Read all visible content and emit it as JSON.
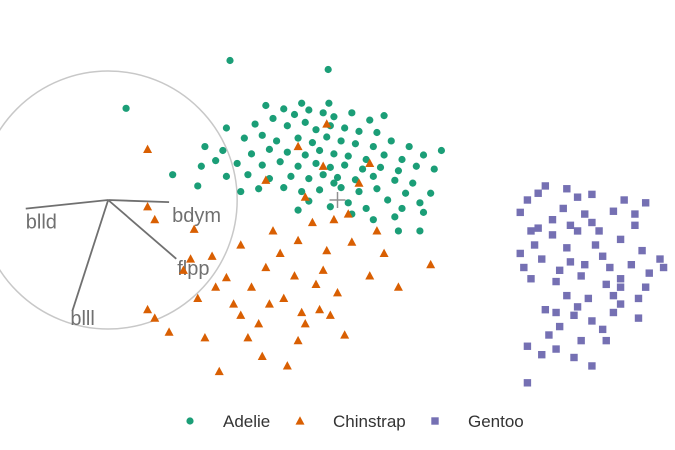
{
  "chart_data": {
    "type": "scatter",
    "title": "",
    "xlabel": "",
    "ylabel": "",
    "grid": false,
    "legend_position": "bottom",
    "xlim": [
      -4.5,
      4.5
    ],
    "ylim": [
      -3.2,
      3.2
    ],
    "center_marker": [
      0,
      0
    ],
    "axes_guide": {
      "circle_radius": 1.8,
      "axes": [
        {
          "name": "blld",
          "end": [
            -1.15,
            -0.12
          ]
        },
        {
          "name": "bdym",
          "end": [
            0.85,
            -0.03
          ]
        },
        {
          "name": "flpp",
          "end": [
            0.95,
            -0.82
          ]
        },
        {
          "name": "blll",
          "end": [
            -0.5,
            -1.55
          ]
        }
      ]
    },
    "series": [
      {
        "name": "Adelie",
        "color": "#1b9e77",
        "marker": "circle",
        "points": [
          [
            -1.5,
            2.48
          ],
          [
            -0.13,
            2.32
          ],
          [
            -0.12,
            1.72
          ],
          [
            -2.95,
            1.63
          ],
          [
            -1.0,
            1.68
          ],
          [
            -0.5,
            1.72
          ],
          [
            -0.75,
            1.62
          ],
          [
            -0.6,
            1.52
          ],
          [
            -0.4,
            1.6
          ],
          [
            -0.2,
            1.55
          ],
          [
            -0.05,
            1.48
          ],
          [
            0.2,
            1.55
          ],
          [
            0.45,
            1.42
          ],
          [
            0.65,
            1.5
          ],
          [
            -0.9,
            1.45
          ],
          [
            -1.15,
            1.35
          ],
          [
            -0.7,
            1.32
          ],
          [
            -0.45,
            1.38
          ],
          [
            -0.3,
            1.25
          ],
          [
            -0.1,
            1.32
          ],
          [
            0.1,
            1.28
          ],
          [
            0.3,
            1.22
          ],
          [
            0.55,
            1.2
          ],
          [
            -1.55,
            1.28
          ],
          [
            -1.3,
            1.1
          ],
          [
            -1.05,
            1.15
          ],
          [
            -0.85,
            1.05
          ],
          [
            -0.55,
            1.1
          ],
          [
            -0.35,
            1.02
          ],
          [
            -0.15,
            1.12
          ],
          [
            0.05,
            1.05
          ],
          [
            0.25,
            1.0
          ],
          [
            0.5,
            0.95
          ],
          [
            0.75,
            1.05
          ],
          [
            1.0,
            0.95
          ],
          [
            -1.85,
            0.95
          ],
          [
            -1.6,
            0.88
          ],
          [
            -1.2,
            0.82
          ],
          [
            -0.95,
            0.9
          ],
          [
            -0.7,
            0.85
          ],
          [
            -0.45,
            0.8
          ],
          [
            -0.25,
            0.88
          ],
          [
            -0.05,
            0.82
          ],
          [
            0.15,
            0.78
          ],
          [
            0.4,
            0.72
          ],
          [
            0.65,
            0.8
          ],
          [
            0.9,
            0.72
          ],
          [
            1.45,
            0.88
          ],
          [
            -1.7,
            0.7
          ],
          [
            -1.4,
            0.65
          ],
          [
            -1.05,
            0.62
          ],
          [
            -0.8,
            0.68
          ],
          [
            -0.55,
            0.6
          ],
          [
            -0.3,
            0.65
          ],
          [
            -0.1,
            0.58
          ],
          [
            0.1,
            0.62
          ],
          [
            0.35,
            0.55
          ],
          [
            0.6,
            0.58
          ],
          [
            0.85,
            0.52
          ],
          [
            1.1,
            0.6
          ],
          [
            -1.55,
            0.42
          ],
          [
            -1.25,
            0.45
          ],
          [
            -0.95,
            0.38
          ],
          [
            -0.65,
            0.42
          ],
          [
            -0.4,
            0.38
          ],
          [
            -0.2,
            0.45
          ],
          [
            0.0,
            0.4
          ],
          [
            0.25,
            0.36
          ],
          [
            0.5,
            0.42
          ],
          [
            0.8,
            0.35
          ],
          [
            1.05,
            0.3
          ],
          [
            -1.95,
            0.25
          ],
          [
            -1.1,
            0.2
          ],
          [
            -0.75,
            0.22
          ],
          [
            -0.5,
            0.15
          ],
          [
            -0.25,
            0.18
          ],
          [
            0.05,
            0.22
          ],
          [
            0.3,
            0.15
          ],
          [
            0.55,
            0.2
          ],
          [
            0.95,
            0.12
          ],
          [
            -0.4,
            -0.02
          ],
          [
            0.15,
            -0.05
          ],
          [
            0.7,
            0.0
          ],
          [
            1.15,
            -0.05
          ],
          [
            1.3,
            0.12
          ],
          [
            0.9,
            -0.15
          ],
          [
            0.2,
            -0.25
          ],
          [
            -0.55,
            -0.18
          ],
          [
            -0.05,
            0.3
          ],
          [
            -1.35,
            0.15
          ],
          [
            0.4,
            -0.15
          ],
          [
            0.8,
            -0.3
          ],
          [
            1.2,
            -0.22
          ],
          [
            0.5,
            -0.35
          ],
          [
            -0.1,
            -0.12
          ],
          [
            1.35,
            0.55
          ],
          [
            1.2,
            0.8
          ],
          [
            -2.3,
            0.45
          ],
          [
            -1.9,
            0.6
          ],
          [
            1.15,
            -0.55
          ],
          [
            0.85,
            -0.55
          ]
        ]
      },
      {
        "name": "Chinstrap",
        "color": "#d95f02",
        "marker": "triangle",
        "points": [
          [
            -2.65,
            -0.12
          ],
          [
            -2.55,
            -0.35
          ],
          [
            -2.0,
            -0.52
          ],
          [
            -1.35,
            -0.8
          ],
          [
            -0.9,
            -0.55
          ],
          [
            -0.55,
            -0.72
          ],
          [
            -0.35,
            -0.4
          ],
          [
            -0.8,
            -0.95
          ],
          [
            -2.05,
            -1.05
          ],
          [
            -0.3,
            -1.5
          ],
          [
            -1.7,
            -1.55
          ],
          [
            -2.65,
            -1.95
          ],
          [
            -1.45,
            -1.85
          ],
          [
            -1.75,
            -1.0
          ],
          [
            -1.55,
            -1.38
          ],
          [
            -1.2,
            -1.55
          ],
          [
            -1.0,
            -1.2
          ],
          [
            -0.75,
            -1.75
          ],
          [
            -0.6,
            -1.35
          ],
          [
            -0.95,
            -1.85
          ],
          [
            -0.5,
            -2.0
          ],
          [
            -1.1,
            -2.2
          ],
          [
            -1.85,
            -2.45
          ],
          [
            -2.35,
            -2.35
          ],
          [
            -1.25,
            -2.45
          ],
          [
            -1.05,
            -2.78
          ],
          [
            -0.55,
            -2.5
          ],
          [
            -0.45,
            -2.2
          ],
          [
            -0.1,
            -2.05
          ],
          [
            0.1,
            -2.4
          ],
          [
            -1.65,
            -3.05
          ],
          [
            -0.7,
            -2.95
          ],
          [
            -2.15,
            -1.25
          ],
          [
            -2.55,
            -2.1
          ],
          [
            -1.95,
            -1.75
          ],
          [
            -1.35,
            -2.05
          ],
          [
            -0.2,
            -1.25
          ],
          [
            0.0,
            -1.65
          ],
          [
            0.45,
            -1.35
          ],
          [
            0.85,
            -1.55
          ],
          [
            1.3,
            -1.15
          ],
          [
            0.65,
            -0.95
          ],
          [
            0.2,
            -0.75
          ],
          [
            -0.15,
            -0.9
          ],
          [
            0.55,
            -0.55
          ],
          [
            0.15,
            -0.25
          ],
          [
            -0.45,
            0.05
          ],
          [
            -0.2,
            0.6
          ],
          [
            -0.55,
            0.95
          ],
          [
            -0.15,
            1.35
          ],
          [
            0.45,
            0.65
          ],
          [
            -1.0,
            0.35
          ],
          [
            -0.05,
            -0.35
          ],
          [
            0.3,
            0.3
          ],
          [
            -2.65,
            0.9
          ],
          [
            -0.25,
            -1.95
          ]
        ]
      },
      {
        "name": "Gentoo",
        "color": "#7570b3",
        "marker": "square",
        "points": [
          [
            2.55,
            -0.22
          ],
          [
            3.0,
            -0.35
          ],
          [
            3.35,
            0.05
          ],
          [
            3.55,
            0.1
          ],
          [
            4.3,
            -0.05
          ],
          [
            2.65,
            0.0
          ],
          [
            2.8,
            0.12
          ],
          [
            3.2,
            0.2
          ],
          [
            3.55,
            -0.4
          ],
          [
            3.85,
            -0.2
          ],
          [
            4.15,
            -0.45
          ],
          [
            3.35,
            -0.55
          ],
          [
            3.0,
            -0.62
          ],
          [
            2.75,
            -0.8
          ],
          [
            3.2,
            -0.85
          ],
          [
            3.6,
            -0.8
          ],
          [
            3.95,
            -0.7
          ],
          [
            4.25,
            -0.9
          ],
          [
            2.55,
            -0.95
          ],
          [
            2.85,
            -1.05
          ],
          [
            3.25,
            -1.1
          ],
          [
            3.45,
            -1.15
          ],
          [
            3.8,
            -1.2
          ],
          [
            4.1,
            -1.15
          ],
          [
            4.5,
            -1.05
          ],
          [
            2.7,
            -1.4
          ],
          [
            3.05,
            -1.45
          ],
          [
            3.4,
            -1.35
          ],
          [
            3.75,
            -1.5
          ],
          [
            3.95,
            -1.4
          ],
          [
            4.3,
            -1.55
          ],
          [
            3.2,
            -1.7
          ],
          [
            3.5,
            -1.75
          ],
          [
            3.85,
            -1.7
          ],
          [
            4.2,
            -1.75
          ],
          [
            2.9,
            -1.95
          ],
          [
            3.3,
            -2.05
          ],
          [
            3.55,
            -2.15
          ],
          [
            3.85,
            -2.0
          ],
          [
            4.2,
            -2.1
          ],
          [
            3.1,
            -2.25
          ],
          [
            2.95,
            -2.4
          ],
          [
            3.4,
            -2.5
          ],
          [
            2.65,
            -2.6
          ],
          [
            2.85,
            -2.75
          ],
          [
            3.05,
            -2.65
          ],
          [
            3.55,
            -2.95
          ],
          [
            3.95,
            -1.85
          ],
          [
            2.65,
            -3.25
          ],
          [
            3.25,
            -0.45
          ],
          [
            2.8,
            -0.5
          ],
          [
            3.7,
            -1.0
          ],
          [
            3.1,
            -1.25
          ],
          [
            3.65,
            -0.55
          ],
          [
            4.0,
            0.0
          ],
          [
            2.6,
            -1.2
          ],
          [
            4.35,
            -1.3
          ],
          [
            3.35,
            -1.9
          ],
          [
            3.7,
            -2.3
          ],
          [
            2.9,
            0.25
          ],
          [
            3.15,
            -0.15
          ],
          [
            3.45,
            -0.25
          ],
          [
            2.7,
            -0.55
          ],
          [
            4.15,
            -0.25
          ],
          [
            3.95,
            -1.55
          ],
          [
            4.55,
            -1.2
          ],
          [
            3.05,
            -2.0
          ],
          [
            3.75,
            -2.5
          ],
          [
            3.3,
            -2.8
          ]
        ]
      }
    ]
  }
}
